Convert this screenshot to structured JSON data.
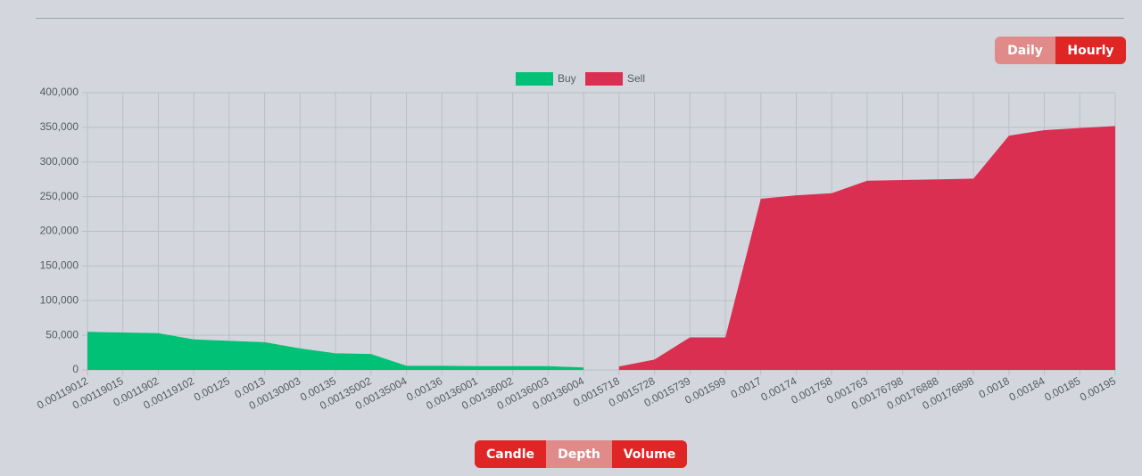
{
  "chart_data": {
    "type": "area",
    "categories": [
      "0.00119012",
      "0.00119015",
      "0.0011902",
      "0.00119102",
      "0.00125",
      "0.0013",
      "0.00130003",
      "0.00135",
      "0.00135002",
      "0.00135004",
      "0.00136",
      "0.00136001",
      "0.00136002",
      "0.00136003",
      "0.00136004",
      "0.0015718",
      "0.0015728",
      "0.0015739",
      "0.001599",
      "0.0017",
      "0.00174",
      "0.001758",
      "0.001763",
      "0.00176798",
      "0.00176888",
      "0.00176898",
      "0.0018",
      "0.00184",
      "0.00185",
      "0.00195"
    ],
    "series": [
      {
        "name": "Buy",
        "color": "#00c176",
        "values": [
          55000,
          54000,
          53000,
          44000,
          42000,
          40000,
          31000,
          24000,
          23000,
          6000,
          6000,
          5500,
          5500,
          5500,
          3500,
          null,
          null,
          null,
          null,
          null,
          null,
          null,
          null,
          null,
          null,
          null,
          null,
          null,
          null,
          null
        ]
      },
      {
        "name": "Sell",
        "color": "#da2f50",
        "values": [
          null,
          null,
          null,
          null,
          null,
          null,
          null,
          null,
          null,
          null,
          null,
          null,
          null,
          null,
          null,
          5000,
          15000,
          47000,
          47000,
          247000,
          252000,
          255000,
          273000,
          274000,
          275000,
          276000,
          338000,
          346000,
          349000,
          352000
        ]
      }
    ],
    "ylim": [
      0,
      400000
    ],
    "yticks": [
      0,
      {
        "value": 50000,
        "label": "50,000"
      },
      {
        "value": 100000,
        "label": "100,000"
      },
      {
        "value": 150000,
        "label": "150,000"
      },
      {
        "value": 200000,
        "label": "200,000"
      },
      {
        "value": 250000,
        "label": "250,000"
      },
      {
        "value": 300000,
        "label": "300,000"
      },
      {
        "value": 350000,
        "label": "350,000"
      },
      {
        "value": 400000,
        "label": "400,000"
      }
    ],
    "grid": true,
    "legend": "top"
  },
  "buttons": {
    "range": [
      "Daily",
      "Hourly"
    ],
    "view": [
      "Candle",
      "Depth",
      "Volume"
    ]
  }
}
